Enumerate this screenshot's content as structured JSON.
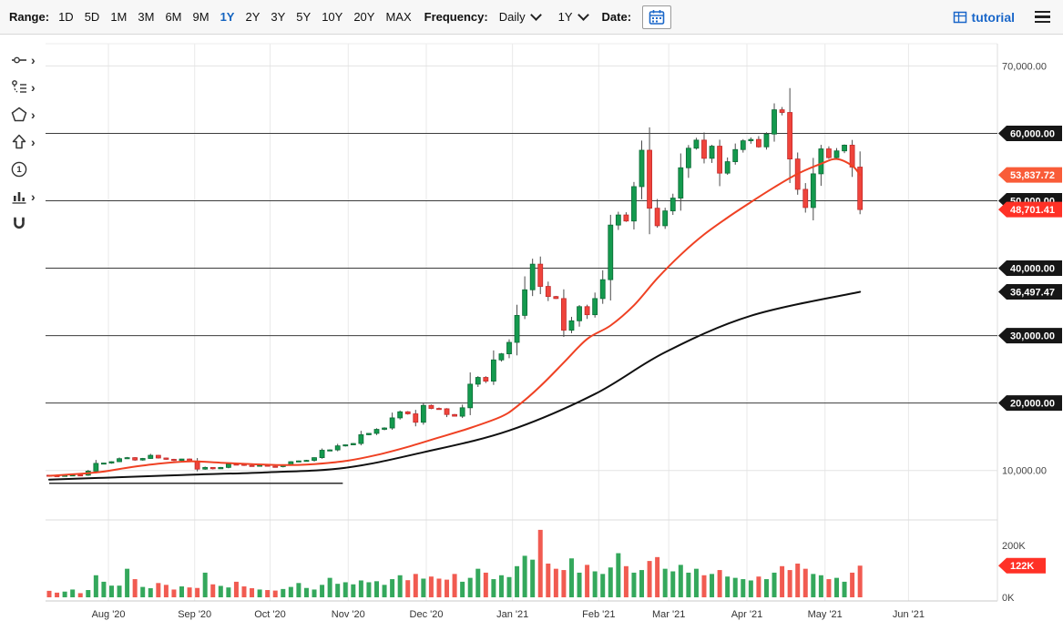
{
  "toolbar": {
    "range_label": "Range:",
    "ranges": [
      "1D",
      "5D",
      "1M",
      "3M",
      "6M",
      "9M",
      "1Y",
      "2Y",
      "3Y",
      "5Y",
      "10Y",
      "20Y",
      "MAX"
    ],
    "selected_range": "1Y",
    "frequency_label": "Frequency:",
    "frequency_value": "Daily",
    "period_value": "1Y",
    "date_label": "Date:",
    "brand": "tutorial",
    "accent_color": "#1a67c9",
    "icons": {
      "date_picker": "calendar-icon",
      "brand": "table-grid-icon",
      "menu": "hamburger-icon",
      "dropdowns": "chevron-down-icon"
    }
  },
  "side_tools": [
    {
      "name": "trend-segment-tool",
      "icon": "segment",
      "submenu": true
    },
    {
      "name": "annotations-list-tool",
      "icon": "anchored-list",
      "submenu": true
    },
    {
      "name": "shapes-tool",
      "icon": "pentagon",
      "submenu": true
    },
    {
      "name": "arrow-marker-tool",
      "icon": "arrow-up",
      "submenu": true
    },
    {
      "name": "numbered-label-tool",
      "icon": "circled-one",
      "submenu": false
    },
    {
      "name": "indicator-tool",
      "icon": "mini-chart",
      "submenu": true
    },
    {
      "name": "magnet-mode-tool",
      "icon": "magnet",
      "submenu": false
    }
  ],
  "chart_data": {
    "type": "candlestick",
    "x_ticks": [
      {
        "label": "Aug '20",
        "day": 22
      },
      {
        "label": "Sep '20",
        "day": 54
      },
      {
        "label": "Oct '20",
        "day": 82
      },
      {
        "label": "Nov '20",
        "day": 111
      },
      {
        "label": "Dec '20",
        "day": 140
      },
      {
        "label": "Jan '21",
        "day": 172
      },
      {
        "label": "Feb '21",
        "day": 204
      },
      {
        "label": "Mar '21",
        "day": 230
      },
      {
        "label": "Apr '21",
        "day": 259
      },
      {
        "label": "May '21",
        "day": 288
      },
      {
        "label": "Jun '21",
        "day": 319
      }
    ],
    "x_domain_days": 352,
    "candle_span_days": 301,
    "ylim": [
      2800,
      73300
    ],
    "first_open": 9300,
    "closes": [
      9240,
      9160,
      9280,
      9350,
      9300,
      9900,
      11050,
      11100,
      11300,
      11750,
      11900,
      11550,
      11780,
      12250,
      11850,
      11650,
      11470,
      11700,
      11400,
      10200,
      10450,
      10250,
      10450,
      10950,
      10920,
      10750,
      10690,
      10780,
      10620,
      10570,
      10800,
      11300,
      11420,
      11500,
      11900,
      13000,
      13050,
      13650,
      13800,
      14000,
      15300,
      15500,
      16100,
      16300,
      17800,
      18700,
      18400,
      17150,
      19650,
      19200,
      19150,
      18300,
      18050,
      19300,
      22800,
      23800,
      23250,
      26400,
      27300,
      29000,
      33000,
      36800,
      40600,
      37300,
      35800,
      35500,
      30800,
      32200,
      34300,
      33100,
      35500,
      38300,
      46400,
      47900,
      47000,
      52100,
      57500,
      48900,
      46300,
      48500,
      50400,
      54900,
      57800,
      59000,
      56300,
      58100,
      54100,
      55800,
      57600,
      58900,
      59100,
      58000,
      59900,
      63500,
      63100,
      56200,
      51700,
      49000,
      54000,
      57700,
      56400,
      57400,
      58250,
      55000,
      48701.41
    ],
    "volumes_k": [
      25,
      18,
      22,
      30,
      16,
      28,
      85,
      60,
      45,
      45,
      110,
      70,
      40,
      35,
      55,
      48,
      30,
      42,
      38,
      36,
      95,
      50,
      44,
      38,
      60,
      42,
      35,
      30,
      28,
      26,
      32,
      40,
      55,
      36,
      30,
      48,
      75,
      52,
      58,
      50,
      65,
      58,
      62,
      48,
      70,
      85,
      66,
      90,
      72,
      80,
      72,
      68,
      90,
      60,
      75,
      110,
      95,
      70,
      85,
      78,
      120,
      160,
      145,
      260,
      130,
      110,
      105,
      150,
      95,
      125,
      100,
      90,
      115,
      170,
      120,
      95,
      105,
      140,
      155,
      110,
      100,
      125,
      95,
      110,
      85,
      90,
      105,
      80,
      75,
      70,
      65,
      80,
      70,
      95,
      120,
      105,
      130,
      110,
      90,
      85,
      70,
      75,
      60,
      95,
      122
    ],
    "y_axis": {
      "plain_labels": [
        {
          "value": 70000,
          "label": "70,000.00"
        },
        {
          "value": 10000,
          "label": "10,000.00"
        }
      ],
      "line_markers": [
        {
          "value": 60000,
          "label": "60,000.00"
        },
        {
          "value": 50000,
          "label": "50,000.00"
        },
        {
          "value": 40000,
          "label": "40,000.00"
        },
        {
          "value": 30000,
          "label": "30,000.00"
        },
        {
          "value": 20000,
          "label": "20,000.00"
        }
      ],
      "price_markers": [
        {
          "value": 53837.72,
          "label": "53,837.72",
          "color": "#f95c38"
        },
        {
          "value": 48701.41,
          "label": "48,701.41",
          "color": "#ff3126"
        },
        {
          "value": 36497.47,
          "label": "36,497.47",
          "color": "#161616"
        }
      ]
    },
    "volume_axis": {
      "max_k": 200,
      "labels": [
        {
          "value": 200,
          "label": "200K"
        },
        {
          "value": 0,
          "label": "0K"
        }
      ],
      "marker": {
        "value": 122,
        "label": "122K",
        "color": "#ff3126"
      }
    },
    "overlays": {
      "red_ma": {
        "color": "#ef4123",
        "anchors": [
          [
            0,
            9200
          ],
          [
            6,
            9700
          ],
          [
            10,
            10400
          ],
          [
            14,
            11000
          ],
          [
            18,
            11350
          ],
          [
            22,
            11150
          ],
          [
            26,
            10950
          ],
          [
            30,
            10800
          ],
          [
            34,
            10950
          ],
          [
            38,
            11400
          ],
          [
            42,
            12300
          ],
          [
            46,
            13500
          ],
          [
            50,
            14900
          ],
          [
            54,
            16300
          ],
          [
            58,
            18000
          ],
          [
            60,
            19500
          ],
          [
            63,
            22500
          ],
          [
            66,
            26000
          ],
          [
            69,
            29500
          ],
          [
            72,
            31500
          ],
          [
            75,
            34500
          ],
          [
            78,
            38500
          ],
          [
            81,
            42000
          ],
          [
            84,
            45000
          ],
          [
            87,
            47500
          ],
          [
            90,
            49800
          ],
          [
            93,
            52000
          ],
          [
            96,
            54000
          ],
          [
            99,
            55500
          ],
          [
            101,
            56200
          ],
          [
            103,
            55200
          ],
          [
            104,
            53837.72
          ]
        ]
      },
      "black_ma": {
        "color": "#101010",
        "anchors": [
          [
            0,
            8650
          ],
          [
            7,
            8920
          ],
          [
            17,
            9320
          ],
          [
            28,
            9730
          ],
          [
            38,
            10400
          ],
          [
            48,
            12700
          ],
          [
            59,
            15930
          ],
          [
            70,
            21350
          ],
          [
            79,
            27530
          ],
          [
            90,
            32950
          ],
          [
            104,
            36497.47
          ]
        ]
      },
      "trend_segment": {
        "from_day": 0,
        "to_day": 109,
        "value": 8100,
        "color": "#2b2b2b"
      }
    },
    "colors": {
      "up": "#149a4e",
      "up_border": "#0b6b35",
      "down": "#ef443b",
      "down_border": "#c3292a",
      "wick": "#4a4a4a",
      "vol_up": "#34a85c",
      "vol_down": "#f15b51",
      "grid_light": "#e9e9e9",
      "grid_dark": "#3c3c3c"
    }
  }
}
